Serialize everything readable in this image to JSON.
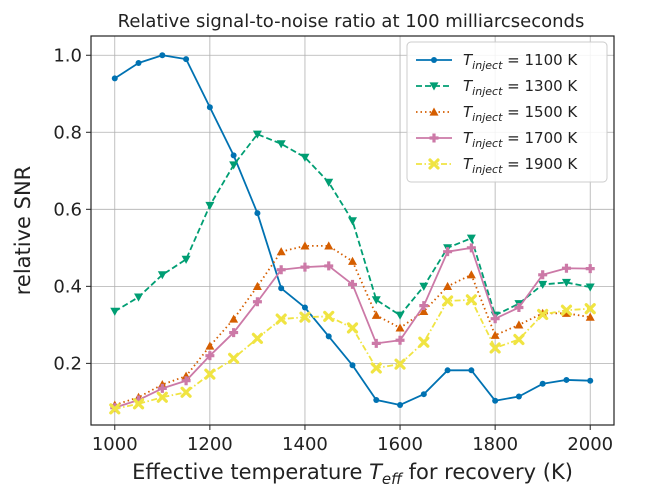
{
  "chart_data": {
    "type": "line",
    "title": "Relative signal-to-noise ratio at 100 milliarcseconds",
    "xlabel_prefix": "Effective temperature ",
    "xlabel_sym": "T",
    "xlabel_sub": "eff",
    "xlabel_suffix": " for recovery (K)",
    "ylabel": "relative SNR",
    "xlim": [
      950,
      2050
    ],
    "ylim": [
      0.04,
      1.05
    ],
    "xticks": [
      1000,
      1200,
      1400,
      1600,
      1800,
      2000
    ],
    "yticks": [
      0.2,
      0.4,
      0.6,
      0.8,
      1.0
    ],
    "ytick_labels": [
      "0.2",
      "0.4",
      "0.6",
      "0.8",
      "1.0"
    ],
    "grid": true,
    "legend_position": "top-right",
    "x": [
      1000,
      1050,
      1100,
      1150,
      1200,
      1250,
      1300,
      1350,
      1400,
      1450,
      1500,
      1550,
      1600,
      1650,
      1700,
      1750,
      1800,
      1850,
      1900,
      1950,
      2000
    ],
    "series": [
      {
        "name_sym": "T",
        "name_sub": "inject",
        "name_suffix": " = 1100 K",
        "color": "#0072b2",
        "dash": "solid",
        "marker": "circle",
        "values": [
          0.94,
          0.98,
          1.0,
          0.99,
          0.865,
          0.74,
          0.59,
          0.395,
          0.345,
          0.27,
          0.195,
          0.105,
          0.092,
          0.12,
          0.182,
          0.182,
          0.103,
          0.114,
          0.147,
          0.157,
          0.155
        ]
      },
      {
        "name_sym": "T",
        "name_sub": "inject",
        "name_suffix": " = 1300 K",
        "color": "#009e73",
        "dash": "dashed",
        "marker": "triangle-down",
        "values": [
          0.335,
          0.372,
          0.43,
          0.47,
          0.61,
          0.715,
          0.795,
          0.77,
          0.735,
          0.67,
          0.57,
          0.365,
          0.325,
          0.4,
          0.5,
          0.525,
          0.325,
          0.355,
          0.405,
          0.41,
          0.398
        ]
      },
      {
        "name_sym": "T",
        "name_sub": "inject",
        "name_suffix": " = 1500 K",
        "color": "#d55e00",
        "dash": "dotted",
        "marker": "triangle-up",
        "values": [
          0.092,
          0.112,
          0.145,
          0.167,
          0.245,
          0.315,
          0.4,
          0.49,
          0.505,
          0.505,
          0.465,
          0.325,
          0.292,
          0.335,
          0.4,
          0.43,
          0.273,
          0.3,
          0.33,
          0.33,
          0.32
        ]
      },
      {
        "name_sym": "T",
        "name_sub": "inject",
        "name_suffix": " = 1700 K",
        "color": "#cc79a7",
        "dash": "solid",
        "marker": "plus",
        "values": [
          0.085,
          0.105,
          0.135,
          0.155,
          0.22,
          0.28,
          0.36,
          0.443,
          0.45,
          0.453,
          0.405,
          0.252,
          0.26,
          0.35,
          0.49,
          0.5,
          0.316,
          0.345,
          0.43,
          0.447,
          0.446
        ]
      },
      {
        "name_sym": "T",
        "name_sub": "inject",
        "name_suffix": " = 1900 K",
        "color": "#f0e442",
        "dash": "dashdot",
        "marker": "x",
        "values": [
          0.082,
          0.095,
          0.112,
          0.125,
          0.172,
          0.213,
          0.265,
          0.315,
          0.32,
          0.322,
          0.292,
          0.188,
          0.198,
          0.255,
          0.362,
          0.365,
          0.24,
          0.262,
          0.327,
          0.338,
          0.342
        ]
      }
    ]
  }
}
